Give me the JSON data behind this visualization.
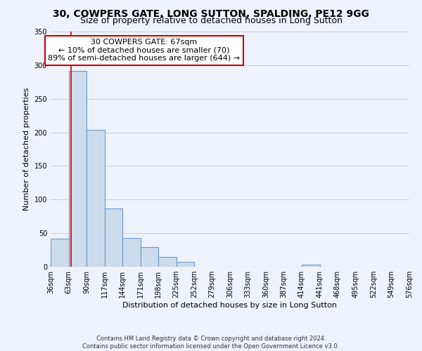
{
  "title": "30, COWPERS GATE, LONG SUTTON, SPALDING, PE12 9GG",
  "subtitle": "Size of property relative to detached houses in Long Sutton",
  "xlabel": "Distribution of detached houses by size in Long Sutton",
  "ylabel": "Number of detached properties",
  "footer_line1": "Contains HM Land Registry data © Crown copyright and database right 2024.",
  "footer_line2": "Contains public sector information licensed under the Open Government Licence v3.0.",
  "bin_edges": [
    36,
    63,
    90,
    117,
    144,
    171,
    198,
    225,
    252,
    279,
    306,
    333,
    360,
    387,
    414,
    441,
    468,
    495,
    522,
    549,
    576
  ],
  "bin_labels": [
    "36sqm",
    "63sqm",
    "90sqm",
    "117sqm",
    "144sqm",
    "171sqm",
    "198sqm",
    "225sqm",
    "252sqm",
    "279sqm",
    "306sqm",
    "333sqm",
    "360sqm",
    "387sqm",
    "414sqm",
    "441sqm",
    "468sqm",
    "495sqm",
    "522sqm",
    "549sqm",
    "576sqm"
  ],
  "bar_heights": [
    42,
    291,
    204,
    87,
    43,
    29,
    15,
    7,
    0,
    0,
    0,
    0,
    0,
    0,
    3,
    0,
    0,
    0,
    0,
    0
  ],
  "bar_color": "#ccdcec",
  "bar_edge_color": "#6699cc",
  "property_line_x": 67,
  "property_line_color": "#cc0000",
  "annotation_title": "30 COWPERS GATE: 67sqm",
  "annotation_line1": "← 10% of detached houses are smaller (70)",
  "annotation_line2": "89% of semi-detached houses are larger (644) →",
  "annotation_box_color": "#ffffff",
  "annotation_box_edge_color": "#cc0000",
  "ylim": [
    0,
    350
  ],
  "yticks": [
    0,
    50,
    100,
    150,
    200,
    250,
    300,
    350
  ],
  "background_color": "#eef2fb",
  "grid_color": "#c8ccd8",
  "title_fontsize": 10,
  "subtitle_fontsize": 9,
  "annot_fontsize": 8,
  "axis_label_fontsize": 8,
  "tick_fontsize": 7
}
